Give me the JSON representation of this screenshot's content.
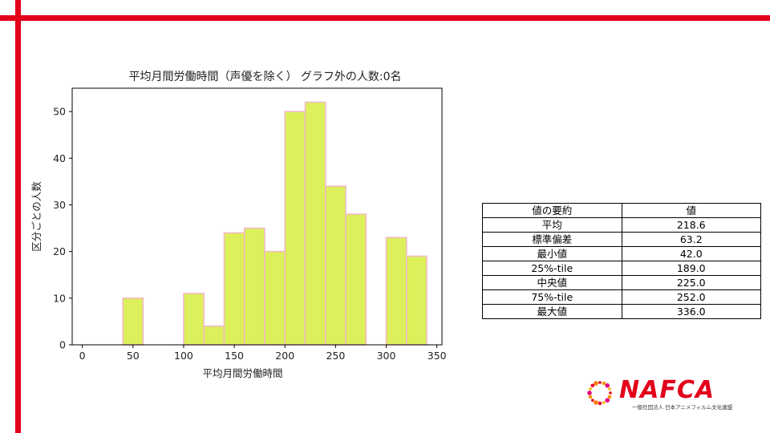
{
  "colors": {
    "frame": "#e2001a",
    "bar_fill": "#dbf05a",
    "bar_edge": "#f2b8c6",
    "logo": "#e2001a"
  },
  "chart_data": {
    "type": "bar",
    "title": "平均月間労働時間（声優を除く） グラフ外の人数:0名",
    "xlabel": "平均月間労働時間",
    "ylabel": "区分ごとの人数",
    "xlim": [
      -10,
      355
    ],
    "ylim": [
      0,
      55
    ],
    "xticks": [
      0,
      50,
      100,
      150,
      200,
      250,
      300,
      350
    ],
    "yticks": [
      0,
      10,
      20,
      30,
      40,
      50
    ],
    "bin_width": 20,
    "bins": [
      {
        "start": 40,
        "count": 10
      },
      {
        "start": 100,
        "count": 11
      },
      {
        "start": 120,
        "count": 4
      },
      {
        "start": 140,
        "count": 24
      },
      {
        "start": 160,
        "count": 25
      },
      {
        "start": 180,
        "count": 20
      },
      {
        "start": 200,
        "count": 50
      },
      {
        "start": 220,
        "count": 52
      },
      {
        "start": 240,
        "count": 34
      },
      {
        "start": 260,
        "count": 28
      },
      {
        "start": 300,
        "count": 23
      },
      {
        "start": 320,
        "count": 19
      }
    ],
    "grid": false,
    "legend": "none"
  },
  "summary_table": {
    "headers": [
      "値の要約",
      "値"
    ],
    "rows": [
      [
        "平均",
        "218.6"
      ],
      [
        "標準偏差",
        "63.2"
      ],
      [
        "最小値",
        "42.0"
      ],
      [
        "25%-tile",
        "189.0"
      ],
      [
        "中央値",
        "225.0"
      ],
      [
        "75%-tile",
        "252.0"
      ],
      [
        "最大値",
        "336.0"
      ]
    ]
  },
  "logo": {
    "wordmark": "NAFCA",
    "subtitle": "一般社団法人 日本アニメフィルム文化連盟"
  }
}
